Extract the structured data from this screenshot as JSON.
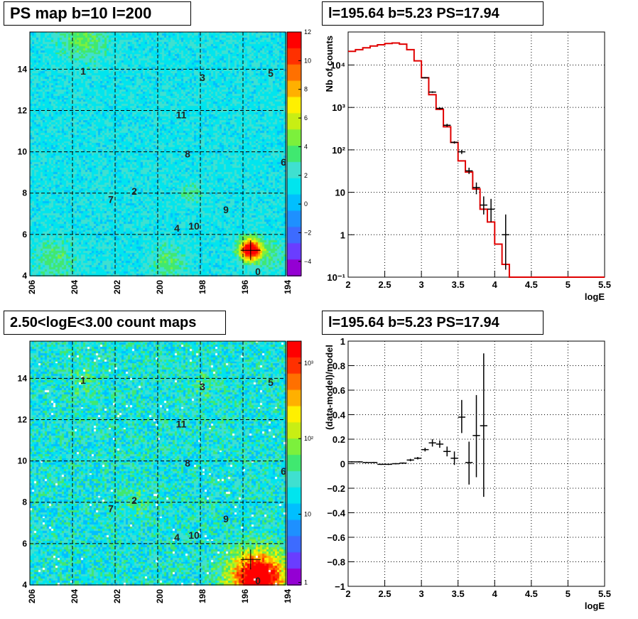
{
  "chart_data": [
    {
      "type": "heatmap",
      "title": "PS map b=10 l=200",
      "x_ticks": [
        "206",
        "204",
        "202",
        "200",
        "198",
        "196",
        "194"
      ],
      "y_ticks": [
        "4",
        "6",
        "8",
        "10",
        "12",
        "14"
      ],
      "xlim": [
        206,
        194
      ],
      "ylim": [
        4,
        15.8
      ],
      "colorbar_ticks": [
        "12",
        "10",
        "8",
        "6",
        "4",
        "2",
        "0",
        "−2",
        "−4"
      ],
      "colorbar_range": [
        -5,
        12
      ],
      "colorbar_colors": [
        "#9400d3",
        "#6a3dff",
        "#3d6bff",
        "#1e90ff",
        "#00bfff",
        "#00e5ee",
        "#3fe0d0",
        "#40e870",
        "#7cf03c",
        "#c8ee14",
        "#fff000",
        "#ffb000",
        "#ff7000",
        "#ff3000",
        "#ff0000"
      ],
      "sources": [
        {
          "label": "0",
          "l": 195.3,
          "b": 4.2
        },
        {
          "label": "1",
          "l": 203.5,
          "b": 13.9
        },
        {
          "label": "2",
          "l": 201.1,
          "b": 8.1
        },
        {
          "label": "3",
          "l": 197.9,
          "b": 13.6
        },
        {
          "label": "4",
          "l": 199.1,
          "b": 6.3
        },
        {
          "label": "5",
          "l": 194.7,
          "b": 13.8
        },
        {
          "label": "6",
          "l": 194.1,
          "b": 9.5
        },
        {
          "label": "7",
          "l": 202.2,
          "b": 7.7
        },
        {
          "label": "8",
          "l": 198.6,
          "b": 9.9
        },
        {
          "label": "9",
          "l": 196.8,
          "b": 7.2
        },
        {
          "label": "10",
          "l": 198.3,
          "b": 6.4
        },
        {
          "label": "11",
          "l": 198.9,
          "b": 11.8
        }
      ],
      "marker": {
        "l": 195.64,
        "b": 5.23
      }
    },
    {
      "type": "line",
      "title": "l=195.64 b=5.23 PS=17.94",
      "xlabel": "logE",
      "ylabel": "Nb of counts",
      "xlim": [
        2,
        5.5
      ],
      "ylim": [
        0.1,
        60000
      ],
      "yscale": "log",
      "x_ticks": [
        "2",
        "2.5",
        "3",
        "3.5",
        "4",
        "4.5",
        "5",
        "5.5"
      ],
      "y_ticks": [
        "10⁻¹",
        "1",
        "10",
        "10²",
        "10³",
        "10⁴"
      ],
      "grid": true,
      "bin_edges": [
        2.0,
        2.1,
        2.2,
        2.3,
        2.4,
        2.5,
        2.6,
        2.7,
        2.8,
        2.9,
        3.0,
        3.1,
        3.2,
        3.3,
        3.4,
        3.5,
        3.6,
        3.7,
        3.8,
        3.9,
        4.0,
        4.1,
        4.2,
        4.3,
        4.4,
        4.5,
        4.6,
        4.7,
        4.8,
        4.9,
        5.0,
        5.1,
        5.2,
        5.3,
        5.4,
        5.5
      ],
      "series": [
        {
          "name": "model",
          "values": [
            21000,
            23000,
            25500,
            28000,
            30000,
            32000,
            33000,
            31000,
            23000,
            12500,
            5000,
            2000,
            900,
            350,
            150,
            55,
            30,
            12,
            4,
            2,
            0.6,
            0.2,
            0.1,
            0.1,
            0.1,
            0.1,
            0.1,
            0.1,
            0.1,
            0.1,
            0.1,
            0.1,
            0.1,
            0.1,
            0.1
          ]
        },
        {
          "name": "data",
          "x": [
            3.05,
            3.15,
            3.25,
            3.35,
            3.45,
            3.55,
            3.65,
            3.75,
            3.85,
            3.95,
            4.15
          ],
          "y": [
            5000,
            2300,
            950,
            380,
            150,
            90,
            32,
            13,
            5,
            4,
            1
          ],
          "ylo": [
            4800,
            2200,
            900,
            350,
            140,
            80,
            27,
            9,
            3,
            2,
            0.15
          ],
          "yhi": [
            5200,
            2400,
            1000,
            410,
            160,
            100,
            38,
            17,
            8,
            7,
            3
          ]
        }
      ]
    },
    {
      "type": "heatmap",
      "title": "2.50<logE<3.00 count maps",
      "x_ticks": [
        "206",
        "204",
        "202",
        "200",
        "198",
        "196",
        "194"
      ],
      "y_ticks": [
        "4",
        "6",
        "8",
        "10",
        "12",
        "14"
      ],
      "xlim": [
        206,
        194
      ],
      "ylim": [
        4,
        15.8
      ],
      "colorbar_ticks": [
        "10³",
        "10²",
        "10",
        "1"
      ],
      "colorbar_scale": "log",
      "colorbar_colors": [
        "#9400d3",
        "#6a3dff",
        "#3d6bff",
        "#1e90ff",
        "#00bfff",
        "#00e5ee",
        "#3fe0d0",
        "#40e870",
        "#7cf03c",
        "#c8ee14",
        "#fff000",
        "#ffb000",
        "#ff7000",
        "#ff3000",
        "#ff0000"
      ]
    },
    {
      "type": "scatter",
      "title": "l=195.64 b=5.23 PS=17.94",
      "xlabel": "logE",
      "ylabel": "(data-model)/model",
      "xlim": [
        2,
        5.5
      ],
      "ylim": [
        -1,
        1
      ],
      "x_ticks": [
        "2",
        "2.5",
        "3",
        "3.5",
        "4",
        "4.5",
        "5",
        "5.5"
      ],
      "y_ticks": [
        "−1",
        "−0.8",
        "−0.6",
        "−0.4",
        "−0.2",
        "0",
        "0.2",
        "0.4",
        "0.6",
        "0.8",
        "1"
      ],
      "grid": true,
      "series": [
        {
          "name": "residuals",
          "x": [
            2.05,
            2.15,
            2.25,
            2.35,
            2.45,
            2.55,
            2.65,
            2.75,
            2.85,
            2.95,
            3.05,
            3.15,
            3.25,
            3.35,
            3.45,
            3.55,
            3.65,
            3.75,
            3.85
          ],
          "xerr": [
            0.05,
            0.05,
            0.05,
            0.05,
            0.05,
            0.05,
            0.05,
            0.05,
            0.05,
            0.05,
            0.05,
            0.05,
            0.05,
            0.05,
            0.05,
            0.05,
            0.05,
            0.05,
            0.05
          ],
          "y": [
            0.015,
            0.015,
            0.01,
            0.01,
            -0.005,
            -0.005,
            0.0,
            0.005,
            0.03,
            0.045,
            0.115,
            0.17,
            0.16,
            0.1,
            0.045,
            0.38,
            0.01,
            0.23,
            0.31
          ],
          "ylo": [
            0.01,
            0.01,
            0.005,
            0.005,
            -0.01,
            -0.01,
            -0.005,
            0.0,
            0.02,
            0.035,
            0.1,
            0.14,
            0.13,
            0.06,
            -0.01,
            0.25,
            -0.17,
            -0.11,
            -0.27
          ],
          "yhi": [
            0.02,
            0.02,
            0.015,
            0.015,
            0.0,
            0.0,
            0.005,
            0.01,
            0.04,
            0.055,
            0.13,
            0.2,
            0.19,
            0.14,
            0.1,
            0.52,
            0.18,
            0.56,
            0.9
          ]
        }
      ]
    }
  ]
}
